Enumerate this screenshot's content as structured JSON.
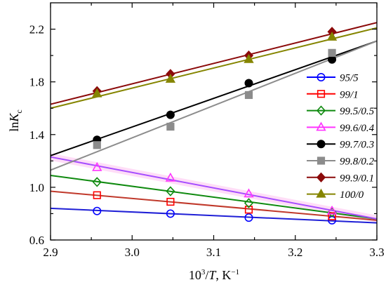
{
  "chart_data": {
    "type": "scatter",
    "xlabel": {
      "base": "10",
      "base_sup": "3",
      "sep": "/",
      "var": "T",
      "unit": ", K",
      "unit_sup": "−1"
    },
    "ylabel": {
      "fn": "ln",
      "var": "K",
      "sub": "c"
    },
    "xlim": [
      2.9,
      3.3
    ],
    "ylim": [
      0.6,
      2.4
    ],
    "xticks": [
      2.9,
      3.0,
      3.1,
      3.2,
      3.3
    ],
    "xticklabels": [
      "2.9",
      "3.0",
      "3.1",
      "3.2",
      "3.3"
    ],
    "yticks": [
      0.6,
      1.0,
      1.4,
      1.8,
      2.2
    ],
    "yticklabels": [
      "0.6",
      "1.0",
      "1.4",
      "1.8",
      "2.2"
    ],
    "grid": false,
    "legend": "right",
    "x": [
      2.957,
      3.047,
      3.143,
      3.245
    ],
    "series": [
      {
        "name": "95/5",
        "marker": "circle-open",
        "color": "#0000ff",
        "line_color": "#1f1fd6",
        "values": [
          0.82,
          0.8,
          0.77,
          0.75
        ],
        "fit": {
          "x": [
            2.9,
            3.3
          ],
          "y": [
            0.84,
            0.73
          ]
        }
      },
      {
        "name": "99/1",
        "marker": "square-open",
        "color": "#ff0000",
        "line_color": "#c0392b",
        "values": [
          0.94,
          0.89,
          0.83,
          0.78
        ],
        "fit": {
          "x": [
            2.9,
            3.3
          ],
          "y": [
            0.97,
            0.75
          ]
        }
      },
      {
        "name": "99.5/0.5",
        "marker": "diamond-open",
        "color": "#0f8a0f",
        "line_color": "#0f8a0f",
        "values": [
          1.04,
          0.97,
          0.88,
          0.81
        ],
        "fit": {
          "x": [
            2.9,
            3.3
          ],
          "y": [
            1.09,
            0.76
          ]
        }
      },
      {
        "name": "99.6/0.4",
        "marker": "triangle-open",
        "color": "#ff33ff",
        "line_color": "#a64dff",
        "halo": "#ffc6f1",
        "values": [
          1.15,
          1.07,
          0.95,
          0.82
        ],
        "fit": {
          "x": [
            2.9,
            3.3
          ],
          "y": [
            1.23,
            0.76
          ]
        }
      },
      {
        "name": "99.7/0.3",
        "marker": "circle-filled",
        "color": "#000000",
        "line_color": "#000000",
        "values": [
          1.36,
          1.55,
          1.79,
          1.97
        ],
        "fit": {
          "x": [
            2.9,
            3.3
          ],
          "y": [
            1.24,
            2.11
          ]
        }
      },
      {
        "name": "99.8/0.2",
        "marker": "square-filled",
        "color": "#8c8c8c",
        "line_color": "#8c8c8c",
        "values": [
          1.32,
          1.46,
          1.7,
          2.02
        ],
        "fit": {
          "x": [
            2.9,
            3.3
          ],
          "y": [
            1.13,
            2.11
          ]
        }
      },
      {
        "name": "99.9/0.1",
        "marker": "diamond-filled",
        "color": "#8b0a0a",
        "line_color": "#8b0a0a",
        "values": [
          1.73,
          1.86,
          2.0,
          2.18
        ],
        "fit": {
          "x": [
            2.9,
            3.3
          ],
          "y": [
            1.63,
            2.25
          ]
        }
      },
      {
        "name": "100/0",
        "marker": "triangle-filled",
        "color": "#858500",
        "line_color": "#858500",
        "values": [
          1.71,
          1.82,
          1.97,
          2.14
        ],
        "fit": {
          "x": [
            2.9,
            3.3
          ],
          "y": [
            1.6,
            2.21
          ]
        }
      }
    ]
  }
}
